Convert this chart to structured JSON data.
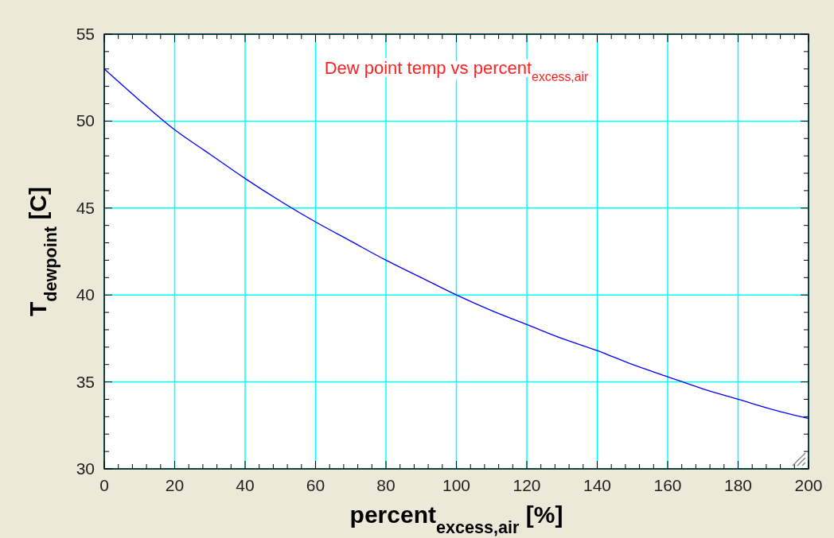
{
  "chart_data": {
    "type": "line",
    "title": "Dew point temp vs percent$_{excess,air}$",
    "xlabel": "percent$_{excess,air}$  [%]",
    "ylabel": "T$_{dewpoint}$  [C]",
    "series": [
      {
        "color": "#0000ff",
        "x": [
          0,
          10,
          20,
          30,
          40,
          50,
          60,
          70,
          80,
          90,
          100,
          110,
          120,
          130,
          140,
          150,
          160,
          170,
          180,
          190,
          200
        ],
        "values": [
          53.0,
          51.2,
          49.5,
          48.1,
          46.7,
          45.4,
          44.2,
          43.1,
          42.0,
          41.0,
          40.0,
          39.1,
          38.3,
          37.5,
          36.8,
          36.0,
          35.3,
          34.6,
          34.0,
          33.4,
          32.9
        ]
      }
    ],
    "xlim": [
      0,
      200
    ],
    "ylim": [
      30,
      55
    ],
    "xticks": [
      0,
      {
        "value": 4,
        "label": null
      },
      {
        "value": 8,
        "label": null
      },
      {
        "value": 12,
        "label": null
      },
      {
        "value": 16,
        "label": null
      },
      20,
      {
        "value": 24,
        "label": null
      },
      {
        "value": 28,
        "label": null
      },
      {
        "value": 32,
        "label": null
      },
      {
        "value": 36,
        "label": null
      },
      40,
      {
        "value": 44,
        "label": null
      },
      {
        "value": 48,
        "label": null
      },
      {
        "value": 52,
        "label": null
      },
      {
        "value": 56,
        "label": null
      },
      60,
      {
        "value": 64,
        "label": null
      },
      {
        "value": 68,
        "label": null
      },
      {
        "value": 72,
        "label": null
      },
      {
        "value": 76,
        "label": null
      },
      80,
      {
        "value": 84,
        "label": null
      },
      {
        "value": 88,
        "label": null
      },
      {
        "value": 92,
        "label": null
      },
      {
        "value": 96,
        "label": null
      },
      100,
      {
        "value": 104,
        "label": null
      },
      {
        "value": 108,
        "label": null
      },
      {
        "value": 112,
        "label": null
      },
      {
        "value": 116,
        "label": null
      },
      120,
      {
        "value": 124,
        "label": null
      },
      {
        "value": 128,
        "label": null
      },
      {
        "value": 132,
        "label": null
      },
      {
        "value": 136,
        "label": null
      },
      140,
      {
        "value": 144,
        "label": null
      },
      {
        "value": 148,
        "label": null
      },
      {
        "value": 152,
        "label": null
      },
      {
        "value": 156,
        "label": null
      },
      160,
      {
        "value": 164,
        "label": null
      },
      {
        "value": 168,
        "label": null
      },
      {
        "value": 172,
        "label": null
      },
      {
        "value": 176,
        "label": null
      },
      180,
      {
        "value": 184,
        "label": null
      },
      {
        "value": 188,
        "label": null
      },
      {
        "value": 192,
        "label": null
      },
      {
        "value": 196,
        "label": null
      },
      200
    ],
    "yticks": [
      30,
      {
        "value": 31,
        "label": null
      },
      {
        "value": 32,
        "label": null
      },
      {
        "value": 33,
        "label": null
      },
      {
        "value": 34,
        "label": null
      },
      35,
      {
        "value": 36,
        "label": null
      },
      {
        "value": 37,
        "label": null
      },
      {
        "value": 38,
        "label": null
      },
      {
        "value": 39,
        "label": null
      },
      40,
      {
        "value": 41,
        "label": null
      },
      {
        "value": 42,
        "label": null
      },
      {
        "value": 43,
        "label": null
      },
      {
        "value": 44,
        "label": null
      },
      45,
      {
        "value": 46,
        "label": null
      },
      {
        "value": 47,
        "label": null
      },
      {
        "value": 48,
        "label": null
      },
      {
        "value": 49,
        "label": null
      },
      50,
      {
        "value": 51,
        "label": null
      },
      {
        "value": 52,
        "label": null
      },
      {
        "value": 53,
        "label": null
      },
      {
        "value": 54,
        "label": null
      },
      55
    ],
    "grid": true,
    "marker": "none",
    "line_style": "solid"
  }
}
